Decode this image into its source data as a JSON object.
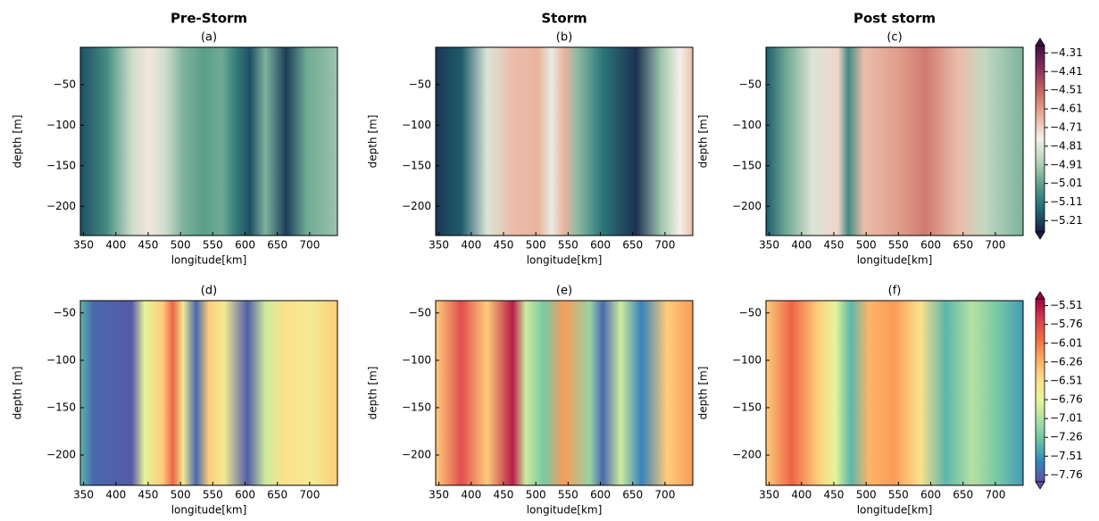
{
  "chart_data": [
    {
      "type": "contour",
      "title": "Pre-Storm",
      "subtitle": "(a)",
      "x_label": "longitude[km]",
      "y_label": "depth [m]",
      "xlim": [
        345,
        743
      ],
      "xticks": [
        350,
        400,
        450,
        500,
        550,
        600,
        650,
        700
      ],
      "ylim": [
        -236,
        -4
      ],
      "yticks": [
        {
          "value": -50,
          "label": "−50"
        },
        {
          "value": -100,
          "label": "−100"
        },
        {
          "value": -150,
          "label": "−150"
        },
        {
          "value": -200,
          "label": "−200"
        }
      ],
      "colormap": [
        "#1b1f45",
        "#1f6b75",
        "#5a9e8a",
        "#b5d2b8",
        "#f5f0ea",
        "#e8b09a",
        "#c86a62",
        "#8a2f5e",
        "#3d1140"
      ]
    },
    {
      "type": "contour",
      "title": "Storm",
      "subtitle": "(b)",
      "x_label": "longitude[km]",
      "y_label": "depth [m]",
      "xlim": [
        345,
        743
      ],
      "xticks": [
        350,
        400,
        450,
        500,
        550,
        600,
        650,
        700
      ],
      "ylim": [
        -236,
        -4
      ],
      "yticks": [
        {
          "value": -50,
          "label": "−50"
        },
        {
          "value": -100,
          "label": "−100"
        },
        {
          "value": -150,
          "label": "−150"
        },
        {
          "value": -200,
          "label": "−200"
        }
      ],
      "colormap": [
        "#1b1f45",
        "#1f6b75",
        "#5a9e8a",
        "#b5d2b8",
        "#f5f0ea",
        "#e8b09a",
        "#c86a62",
        "#8a2f5e",
        "#3d1140"
      ]
    },
    {
      "type": "contour",
      "title": "Post storm",
      "subtitle": "(c)",
      "x_label": "longitude[km]",
      "y_label": "depth [m]",
      "xlim": [
        345,
        743
      ],
      "xticks": [
        350,
        400,
        450,
        500,
        550,
        600,
        650,
        700
      ],
      "ylim": [
        -236,
        -4
      ],
      "yticks": [
        {
          "value": -50,
          "label": "−50"
        },
        {
          "value": -100,
          "label": "−100"
        },
        {
          "value": -150,
          "label": "−150"
        },
        {
          "value": -200,
          "label": "−200"
        }
      ],
      "colormap": [
        "#1b1f45",
        "#1f6b75",
        "#5a9e8a",
        "#b5d2b8",
        "#f5f0ea",
        "#e8b09a",
        "#c86a62",
        "#8a2f5e",
        "#3d1140"
      ],
      "colorbar": {
        "lim": [
          -5.27,
          -4.27
        ],
        "ticks": [
          {
            "value": -4.31,
            "label": "−4.31"
          },
          {
            "value": -4.41,
            "label": "−4.41"
          },
          {
            "value": -4.51,
            "label": "−4.51"
          },
          {
            "value": -4.61,
            "label": "−4.61"
          },
          {
            "value": -4.71,
            "label": "−4.71"
          },
          {
            "value": -4.81,
            "label": "−4.81"
          },
          {
            "value": -4.91,
            "label": "−4.91"
          },
          {
            "value": -5.01,
            "label": "−5.01"
          },
          {
            "value": -5.11,
            "label": "−5.11"
          },
          {
            "value": -5.21,
            "label": "−5.21"
          }
        ]
      }
    },
    {
      "type": "contour",
      "subtitle": "(d)",
      "x_label": "longitude[km]",
      "y_label": "depth [m]",
      "xlim": [
        345,
        743
      ],
      "xticks": [
        350,
        400,
        450,
        500,
        550,
        600,
        650,
        700
      ],
      "ylim": [
        -232,
        -37
      ],
      "yticks": [
        {
          "value": -50,
          "label": "−50"
        },
        {
          "value": -100,
          "label": "−100"
        },
        {
          "value": -150,
          "label": "−150"
        },
        {
          "value": -200,
          "label": "−200"
        }
      ],
      "colormap": [
        "#5e4fa2",
        "#3288bd",
        "#66c2a5",
        "#abdda4",
        "#e6f598",
        "#fee08b",
        "#fdae61",
        "#f46d43",
        "#d53e4f",
        "#9e0142"
      ]
    },
    {
      "type": "contour",
      "subtitle": "(e)",
      "x_label": "longitude[km]",
      "y_label": "depth [m]",
      "xlim": [
        345,
        743
      ],
      "xticks": [
        350,
        400,
        450,
        500,
        550,
        600,
        650,
        700
      ],
      "ylim": [
        -232,
        -37
      ],
      "yticks": [
        {
          "value": -50,
          "label": "−50"
        },
        {
          "value": -100,
          "label": "−100"
        },
        {
          "value": -150,
          "label": "−150"
        },
        {
          "value": -200,
          "label": "−200"
        }
      ],
      "colormap": [
        "#5e4fa2",
        "#3288bd",
        "#66c2a5",
        "#abdda4",
        "#e6f598",
        "#fee08b",
        "#fdae61",
        "#f46d43",
        "#d53e4f",
        "#9e0142"
      ]
    },
    {
      "type": "contour",
      "subtitle": "(f)",
      "x_label": "longitude[km]",
      "y_label": "depth [m]",
      "xlim": [
        345,
        743
      ],
      "xticks": [
        350,
        400,
        450,
        500,
        550,
        600,
        650,
        700
      ],
      "ylim": [
        -232,
        -37
      ],
      "yticks": [
        {
          "value": -50,
          "label": "−50"
        },
        {
          "value": -100,
          "label": "−100"
        },
        {
          "value": -150,
          "label": "−150"
        },
        {
          "value": -200,
          "label": "−200"
        }
      ],
      "colormap": [
        "#5e4fa2",
        "#3288bd",
        "#66c2a5",
        "#abdda4",
        "#e6f598",
        "#fee08b",
        "#fdae61",
        "#f46d43",
        "#d53e4f",
        "#9e0142"
      ],
      "colorbar": {
        "lim": [
          -7.85,
          -5.42
        ],
        "ticks": [
          {
            "value": -5.51,
            "label": "−5.51"
          },
          {
            "value": -5.76,
            "label": "−5.76"
          },
          {
            "value": -6.01,
            "label": "−6.01"
          },
          {
            "value": -6.26,
            "label": "−6.26"
          },
          {
            "value": -6.51,
            "label": "−6.51"
          },
          {
            "value": -6.76,
            "label": "−6.76"
          },
          {
            "value": -7.01,
            "label": "−7.01"
          },
          {
            "value": -7.26,
            "label": "−7.26"
          },
          {
            "value": -7.51,
            "label": "−7.51"
          },
          {
            "value": -7.76,
            "label": "−7.76"
          }
        ]
      }
    }
  ]
}
